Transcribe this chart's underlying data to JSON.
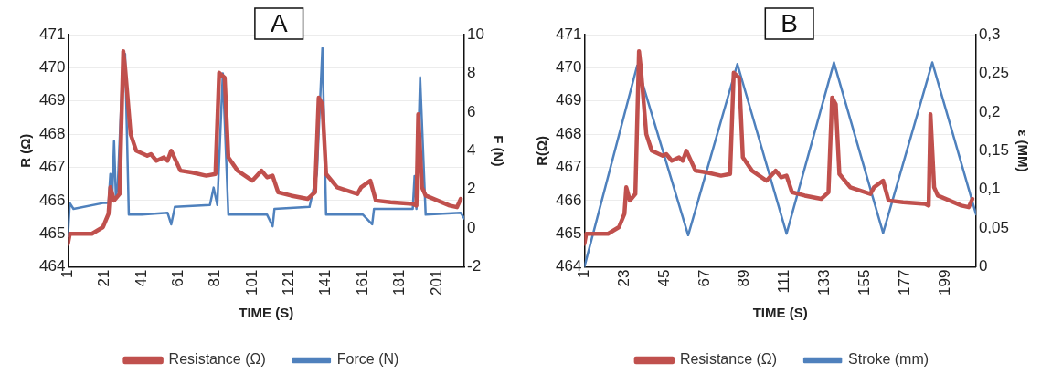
{
  "chart_data": [
    {
      "type": "line",
      "title": "A",
      "xlabel": "TIME (S)",
      "ylabel": "R (Ω)",
      "y2label": "F (N)",
      "legend": "bottom",
      "grid": "y",
      "xlim": [
        1,
        216
      ],
      "xticks": [
        1,
        21,
        41,
        61,
        81,
        101,
        121,
        141,
        161,
        181,
        201
      ],
      "ylim": [
        464,
        471
      ],
      "yticks": [
        464,
        465,
        466,
        467,
        468,
        469,
        470,
        471
      ],
      "y2lim": [
        -2,
        10
      ],
      "y2ticks": [
        -2,
        0,
        2,
        4,
        6,
        8,
        10
      ],
      "series": [
        {
          "name": "Resistance (Ω)",
          "color": "#c0504d",
          "x": [
            1,
            2,
            14,
            20,
            23,
            24,
            26,
            29,
            31,
            32,
            35,
            38,
            44,
            46,
            49,
            53,
            55,
            57,
            62,
            68,
            76,
            81,
            83,
            86,
            88,
            93,
            101,
            106,
            109,
            112,
            115,
            122,
            131,
            135,
            137,
            139,
            141,
            147,
            158,
            160,
            165,
            168,
            176,
            188,
            190,
            191,
            193,
            195,
            208,
            212,
            214
          ],
          "values": [
            464.7,
            465.0,
            465.0,
            465.2,
            465.6,
            466.4,
            466.0,
            466.2,
            470.5,
            470.0,
            468.0,
            467.5,
            467.35,
            467.4,
            467.2,
            467.3,
            467.2,
            467.5,
            466.9,
            466.85,
            466.75,
            466.8,
            469.85,
            469.7,
            467.3,
            466.9,
            466.6,
            466.9,
            466.7,
            466.75,
            466.25,
            466.15,
            466.05,
            466.25,
            469.1,
            468.9,
            466.8,
            466.4,
            466.2,
            466.4,
            466.6,
            466.0,
            465.95,
            465.9,
            465.85,
            468.6,
            466.4,
            466.15,
            465.85,
            465.8,
            466.05
          ]
        },
        {
          "name": "Force (N)",
          "color": "#4f81bd",
          "axis": "y2",
          "x": [
            1,
            2,
            4,
            20,
            23,
            24,
            25,
            26,
            27,
            28,
            31,
            32,
            34,
            41,
            55,
            57,
            59,
            78,
            80,
            82,
            85,
            88,
            109,
            112,
            113,
            132,
            136,
            139,
            141,
            161,
            166,
            167,
            188,
            189,
            190,
            192,
            195,
            214,
            216
          ],
          "values": [
            -0.4,
            1.3,
            1.0,
            1.3,
            1.3,
            2.8,
            1.5,
            4.5,
            1.6,
            2.2,
            9.0,
            9.0,
            0.7,
            0.7,
            0.8,
            0.2,
            1.1,
            1.2,
            2.1,
            1.2,
            8.0,
            0.7,
            0.7,
            0.1,
            1.0,
            1.1,
            2.8,
            9.3,
            0.7,
            0.7,
            0.2,
            1.0,
            1.0,
            2.7,
            1.0,
            7.8,
            0.7,
            0.8,
            0.5
          ]
        }
      ]
    },
    {
      "type": "line",
      "title": "B",
      "xlabel": "TIME (S)",
      "ylabel": "R(Ω)",
      "y2label": "ε (MM)",
      "legend": "bottom",
      "grid": "y",
      "xlim": [
        1,
        216
      ],
      "xticks": [
        1,
        23,
        45,
        67,
        89,
        111,
        133,
        155,
        177,
        199
      ],
      "ylim": [
        464,
        471
      ],
      "yticks": [
        464,
        465,
        466,
        467,
        468,
        469,
        470,
        471
      ],
      "y2lim": [
        0,
        0.3
      ],
      "y2ticks": [
        0,
        {
          "value": 0.05,
          "label": "0,05"
        },
        {
          "value": 0.1,
          "label": "0,1"
        },
        {
          "value": 0.15,
          "label": "0,15"
        },
        {
          "value": 0.2,
          "label": "0,2"
        },
        {
          "value": 0.25,
          "label": "0,25"
        },
        {
          "value": 0.3,
          "label": "0,3"
        }
      ],
      "series": [
        {
          "name": "Resistance (Ω)",
          "color": "#c0504d",
          "x": [
            1,
            2,
            14,
            20,
            23,
            24,
            26,
            29,
            31,
            32,
            35,
            38,
            44,
            46,
            49,
            53,
            55,
            57,
            62,
            68,
            76,
            81,
            83,
            86,
            88,
            93,
            101,
            106,
            109,
            112,
            115,
            122,
            131,
            135,
            137,
            139,
            141,
            147,
            158,
            160,
            165,
            168,
            176,
            188,
            190,
            191,
            193,
            195,
            208,
            212,
            214
          ],
          "values": [
            464.7,
            465.0,
            465.0,
            465.2,
            465.6,
            466.4,
            466.0,
            466.2,
            470.5,
            470.0,
            468.0,
            467.5,
            467.35,
            467.4,
            467.2,
            467.3,
            467.2,
            467.5,
            466.9,
            466.85,
            466.75,
            466.8,
            469.85,
            469.7,
            467.3,
            466.9,
            466.6,
            466.9,
            466.7,
            466.75,
            466.25,
            466.15,
            466.05,
            466.25,
            469.1,
            468.9,
            466.8,
            466.4,
            466.2,
            466.4,
            466.6,
            466.0,
            465.95,
            465.9,
            465.85,
            468.6,
            466.4,
            466.15,
            465.85,
            465.8,
            466.05
          ]
        },
        {
          "name": "Stroke (mm)",
          "color": "#4f81bd",
          "axis": "y2",
          "x": [
            1,
            30,
            58,
            85,
            112,
            138,
            165,
            192,
            216
          ],
          "values": [
            0,
            0.26,
            0.041,
            0.262,
            0.043,
            0.264,
            0.044,
            0.264,
            0.068
          ]
        }
      ]
    }
  ]
}
